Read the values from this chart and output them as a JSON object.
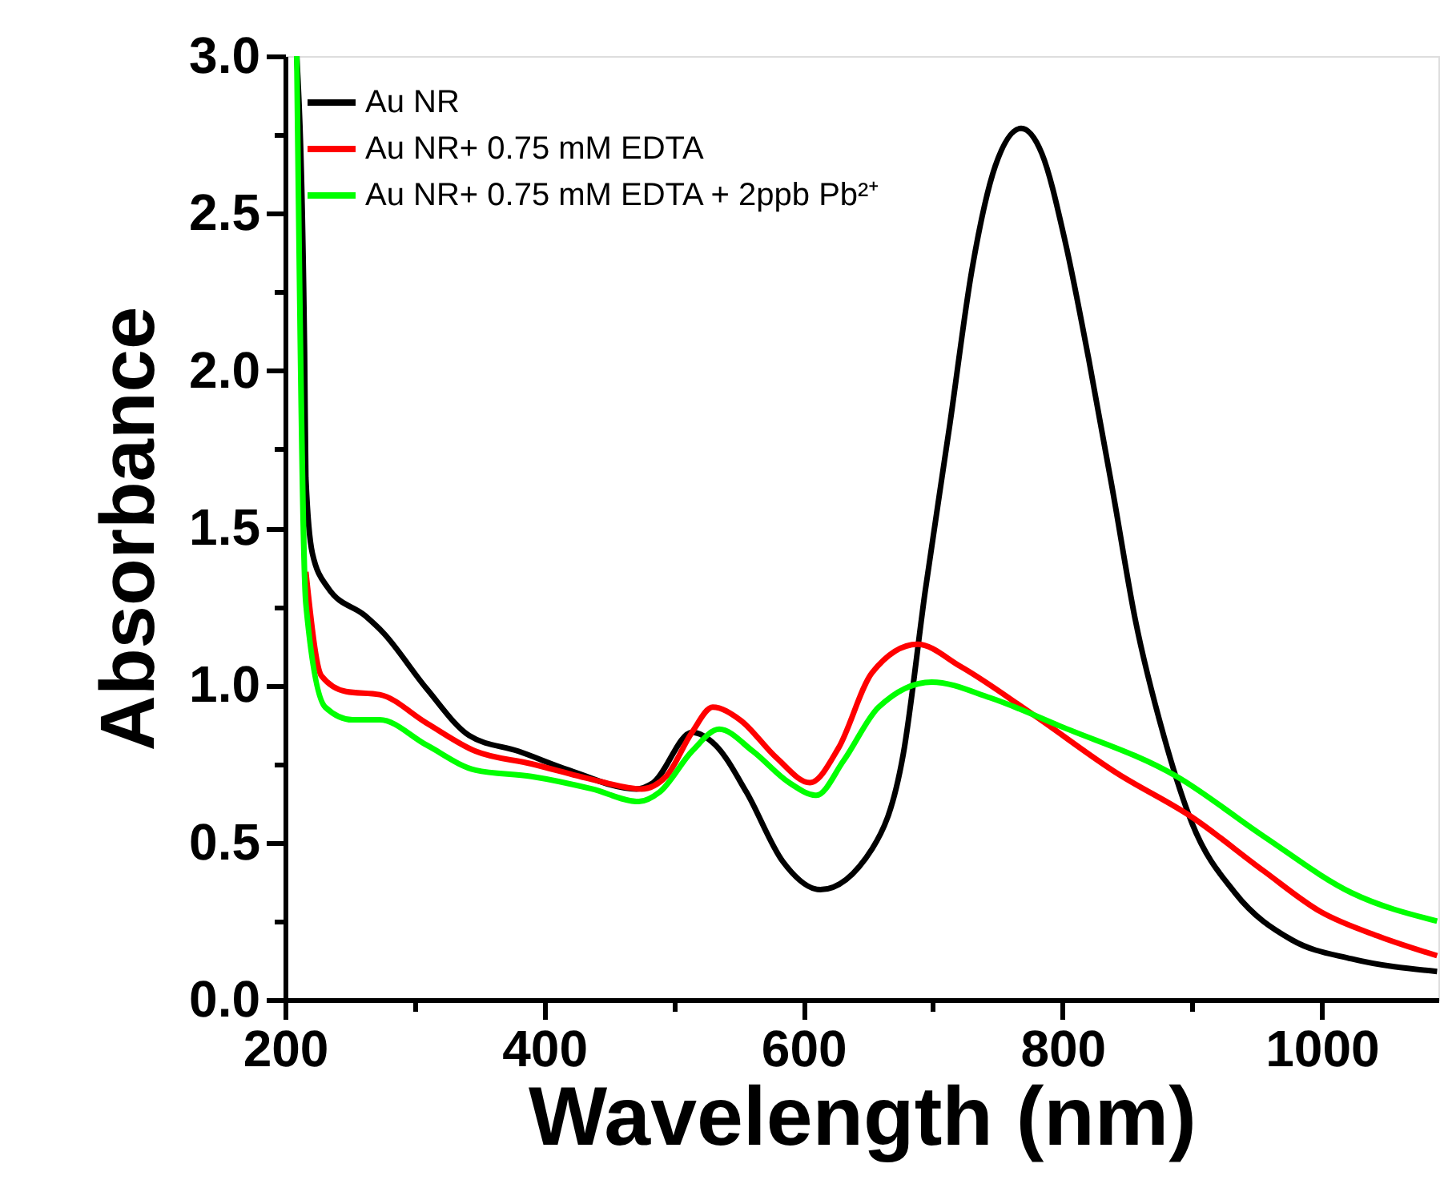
{
  "chart_data": {
    "type": "line",
    "xlabel": "Wavelength (nm)",
    "ylabel": "Absorbance",
    "xlim": [
      200,
      1090
    ],
    "ylim": [
      0,
      3.0
    ],
    "xticks": [
      200,
      {
        "value": 300,
        "label": null
      },
      400,
      {
        "value": 500,
        "label": null
      },
      600,
      {
        "value": 700,
        "label": null
      },
      800,
      {
        "value": 900,
        "label": null
      },
      1000
    ],
    "yticks": [
      {
        "value": 0,
        "label": "0.0"
      },
      {
        "value": 0.25,
        "label": null
      },
      0.5,
      {
        "value": 0.75,
        "label": null
      },
      {
        "value": 1,
        "label": "1.0"
      },
      {
        "value": 1.25,
        "label": null
      },
      1.5,
      {
        "value": 1.75,
        "label": null
      },
      {
        "value": 2,
        "label": "2.0"
      },
      {
        "value": 2.25,
        "label": null
      },
      2.5,
      {
        "value": 2.75,
        "label": null
      },
      {
        "value": 3,
        "label": "3.0"
      }
    ],
    "grid": false,
    "legend": "top left",
    "marker": "none",
    "line_style": "solid",
    "series": [
      {
        "name": "Au NR",
        "color": "#000000",
        "x": [
          209,
          215,
          216,
          221,
          233,
          262,
          275,
          309,
          342,
          380,
          419,
          471,
          484,
          514,
          532,
          556,
          584,
          613,
          653,
          677,
          694,
          713,
          730,
          748,
          768,
          784,
          802,
          820,
          839,
          856,
          878,
          900,
          933,
          977,
          1023,
          1089
        ],
        "values": [
          3.0,
          2.06,
          1.66,
          1.42,
          1.31,
          1.22,
          1.17,
          0.99,
          0.84,
          0.79,
          0.73,
          0.67,
          0.69,
          0.85,
          0.81,
          0.66,
          0.44,
          0.35,
          0.48,
          0.78,
          1.3,
          1.83,
          2.32,
          2.65,
          2.77,
          2.69,
          2.41,
          2.04,
          1.61,
          1.21,
          0.84,
          0.56,
          0.34,
          0.19,
          0.13,
          0.09
        ]
      },
      {
        "name": "Au NR+ 0.75 mM EDTA",
        "color": "#ff0000",
        "x": [
          216,
          228,
          247,
          273,
          309,
          347,
          390,
          437,
          475,
          494,
          514,
          530,
          551,
          579,
          605,
          627,
          653,
          688,
          721,
          776,
          842,
          900,
          955,
          999,
          1045,
          1089
        ],
        "values": [
          1.36,
          1.03,
          0.98,
          0.97,
          0.88,
          0.79,
          0.75,
          0.7,
          0.67,
          0.71,
          0.85,
          0.93,
          0.89,
          0.77,
          0.69,
          0.8,
          1.04,
          1.13,
          1.06,
          0.91,
          0.72,
          0.58,
          0.41,
          0.28,
          0.2,
          0.14
        ]
      },
      {
        "name": "Au NR+ 0.75 mM EDTA + 2ppb Pb²⁺",
        "color": "#00ff00",
        "x": [
          209,
          216,
          231,
          252,
          273,
          309,
          347,
          390,
          437,
          473,
          489,
          514,
          535,
          561,
          589,
          610,
          631,
          658,
          699,
          744,
          798,
          888,
          955,
          1023,
          1089
        ],
        "values": [
          3.0,
          1.26,
          0.93,
          0.89,
          0.89,
          0.81,
          0.73,
          0.71,
          0.67,
          0.63,
          0.66,
          0.79,
          0.86,
          0.79,
          0.69,
          0.65,
          0.76,
          0.93,
          1.01,
          0.96,
          0.87,
          0.71,
          0.52,
          0.34,
          0.25
        ]
      }
    ]
  }
}
